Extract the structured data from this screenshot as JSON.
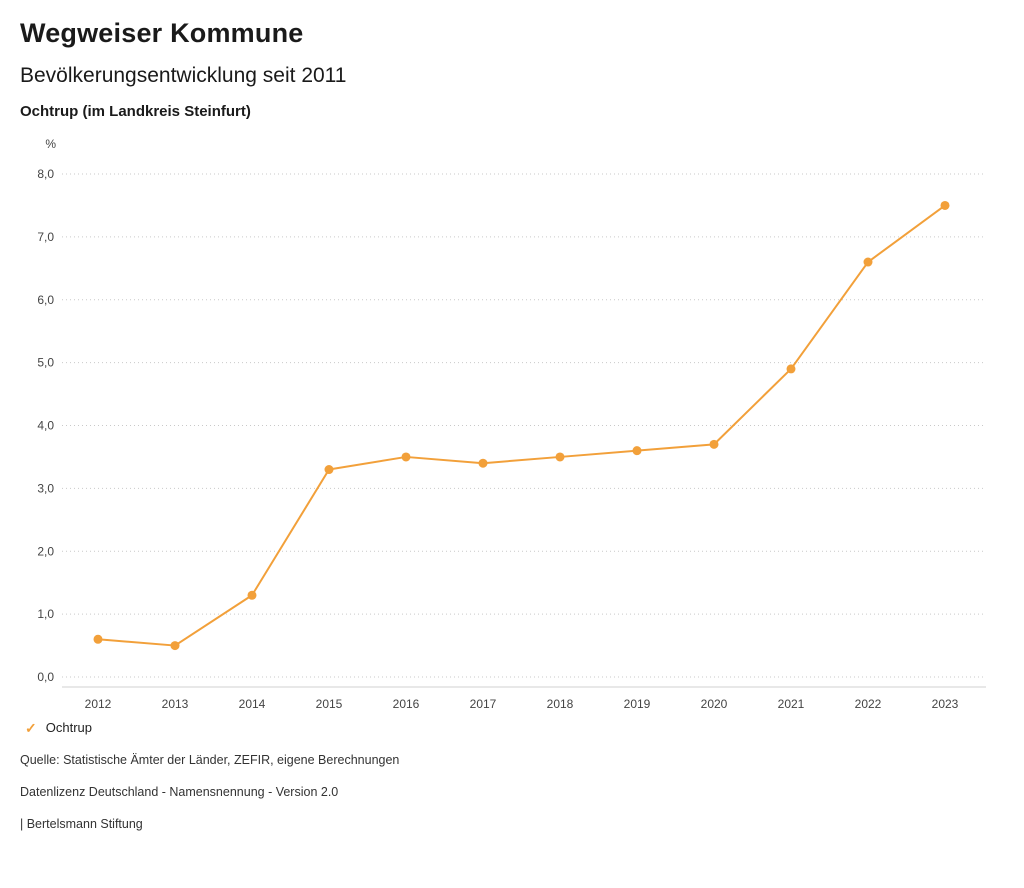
{
  "header": {
    "title": "Wegweiser Kommune",
    "subtitle": "Bevölkerungsentwicklung seit 2011",
    "location": "Ochtrup (im Landkreis Steinfurt)"
  },
  "chart_data": {
    "type": "line",
    "title": "Bevölkerungsentwicklung seit 2011",
    "xlabel": "",
    "ylabel": "%",
    "categories": [
      "2012",
      "2013",
      "2014",
      "2015",
      "2016",
      "2017",
      "2018",
      "2019",
      "2020",
      "2021",
      "2022",
      "2023"
    ],
    "series": [
      {
        "name": "Ochtrup",
        "color": "#f2a03a",
        "values": [
          0.6,
          0.5,
          1.3,
          3.3,
          3.5,
          3.4,
          3.5,
          3.6,
          3.7,
          4.9,
          6.6,
          7.5
        ]
      }
    ],
    "ylim": [
      0,
      8
    ],
    "yticks": [
      0,
      1,
      2,
      3,
      4,
      5,
      6,
      7,
      8
    ],
    "ytick_labels": [
      "0,0",
      "1,0",
      "2,0",
      "3,0",
      "4,0",
      "5,0",
      "6,0",
      "7,0",
      "8,0"
    ],
    "grid": "horizontal-dotted",
    "legend_position": "bottom-left"
  },
  "legend": {
    "items": [
      {
        "label": "Ochtrup",
        "color": "#f2a03a",
        "marker": "check-icon"
      }
    ]
  },
  "footer": {
    "source": "Quelle: Statistische Ämter der Länder, ZEFIR, eigene Berechnungen",
    "license": "Datenlizenz Deutschland - Namensnennung - Version 2.0",
    "attribution": "| Bertelsmann Stiftung"
  }
}
